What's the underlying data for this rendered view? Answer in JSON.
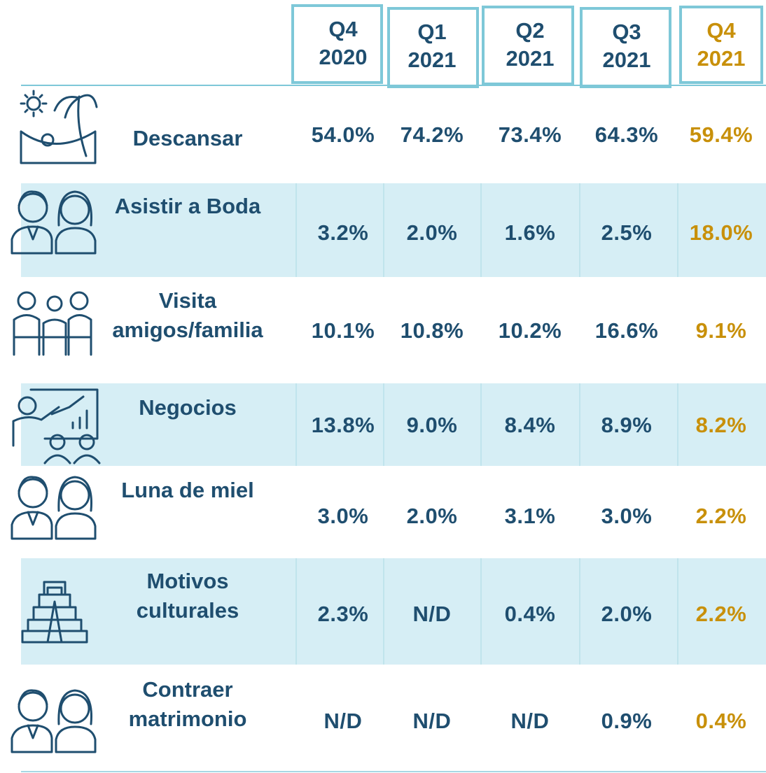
{
  "table": {
    "columns": [
      [
        "Q4",
        "2020"
      ],
      [
        "Q1",
        "2021"
      ],
      [
        "Q2",
        "2021"
      ],
      [
        "Q3",
        "2021"
      ],
      [
        "Q4",
        "2021"
      ]
    ],
    "rows": [
      {
        "label": [
          "Descansar"
        ],
        "values": [
          "54.0%",
          "74.2%",
          "73.4%",
          "64.3%",
          "59.4%"
        ]
      },
      {
        "label": [
          "Asistir a Boda"
        ],
        "values": [
          "3.2%",
          "2.0%",
          "1.6%",
          "2.5%",
          "18.0%"
        ]
      },
      {
        "label": [
          "Visita",
          "amigos/familia"
        ],
        "values": [
          "10.1%",
          "10.8%",
          "10.2%",
          "16.6%",
          "9.1%"
        ]
      },
      {
        "label": [
          "Negocios"
        ],
        "values": [
          "13.8%",
          "9.0%",
          "8.4%",
          "8.9%",
          "8.2%"
        ]
      },
      {
        "label": [
          "Luna de miel"
        ],
        "values": [
          "3.0%",
          "2.0%",
          "3.1%",
          "3.0%",
          "2.2%"
        ]
      },
      {
        "label": [
          "Motivos",
          "culturales"
        ],
        "values": [
          "2.3%",
          "N/D",
          "0.4%",
          "2.0%",
          "2.2%"
        ]
      },
      {
        "label": [
          "Contraer",
          "matrimonio"
        ],
        "values": [
          "N/D",
          "N/D",
          "N/D",
          "0.9%",
          "0.4%"
        ]
      }
    ]
  }
}
